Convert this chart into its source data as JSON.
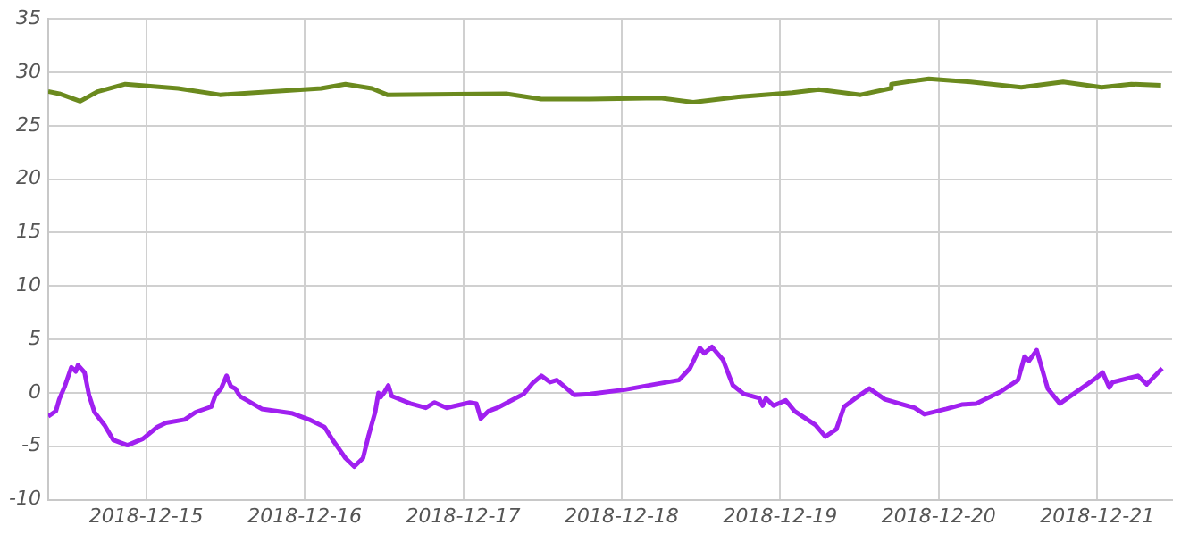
{
  "chart_data": {
    "type": "line",
    "xlim": [
      "2018-12-14T09:10",
      "2018-12-21T11:20"
    ],
    "xticks": [
      "2018-12-15",
      "2018-12-16",
      "2018-12-17",
      "2018-12-18",
      "2018-12-19",
      "2018-12-20",
      "2018-12-21"
    ],
    "ylim": [
      -10,
      35
    ],
    "yticks": [
      -10,
      -5,
      0,
      5,
      10,
      15,
      20,
      25,
      30,
      35
    ],
    "grid": true,
    "legend": false,
    "marker": "none",
    "line_style": "solid",
    "series": [
      {
        "color": "#6b8a1e",
        "x": [
          "2018-12-14T09:10",
          "2018-12-14T10:50",
          "2018-12-14T14:00",
          "2018-12-14T16:40",
          "2018-12-14T20:50",
          "2018-12-15T04:50",
          "2018-12-15T11:10",
          "2018-12-16T02:30",
          "2018-12-16T06:10",
          "2018-12-16T10:10",
          "2018-12-16T12:30",
          "2018-12-17T06:30",
          "2018-12-17T11:50",
          "2018-12-17T19:10",
          "2018-12-18T05:50",
          "2018-12-18T10:50",
          "2018-12-18T17:40",
          "2018-12-19T01:50",
          "2018-12-19T05:50",
          "2018-12-19T12:10",
          "2018-12-19T16:40",
          "2018-12-19T16:50",
          "2018-12-19T22:30",
          "2018-12-20T04:50",
          "2018-12-20T12:30",
          "2018-12-20T18:50",
          "2018-12-21T00:40",
          "2018-12-21T05:10",
          "2018-12-21T09:40"
        ],
        "values": [
          28.2,
          28.0,
          27.3,
          28.2,
          28.9,
          28.5,
          27.9,
          28.5,
          28.9,
          28.5,
          27.9,
          28.0,
          27.5,
          27.5,
          27.6,
          27.2,
          27.7,
          28.1,
          28.4,
          27.9,
          28.5,
          28.9,
          29.4,
          29.1,
          28.6,
          29.1,
          28.6,
          28.9,
          28.8
        ]
      },
      {
        "color": "#a020f0",
        "x": [
          "2018-12-14T09:10",
          "2018-12-14T10:20",
          "2018-12-14T10:50",
          "2018-12-14T11:40",
          "2018-12-14T12:40",
          "2018-12-14T13:20",
          "2018-12-14T13:40",
          "2018-12-14T14:40",
          "2018-12-14T15:20",
          "2018-12-14T16:10",
          "2018-12-14T17:40",
          "2018-12-14T19:00",
          "2018-12-14T21:10",
          "2018-12-14T23:30",
          "2018-12-15T01:40",
          "2018-12-15T03:00",
          "2018-12-15T05:50",
          "2018-12-15T07:30",
          "2018-12-15T09:50",
          "2018-12-15T10:30",
          "2018-12-15T11:20",
          "2018-12-15T12:10",
          "2018-12-15T12:50",
          "2018-12-15T13:30",
          "2018-12-15T14:10",
          "2018-12-15T17:30",
          "2018-12-15T22:00",
          "2018-12-16T00:40",
          "2018-12-16T03:00",
          "2018-12-16T04:20",
          "2018-12-16T06:10",
          "2018-12-16T07:30",
          "2018-12-16T08:50",
          "2018-12-16T09:40",
          "2018-12-16T10:40",
          "2018-12-16T11:10",
          "2018-12-16T11:30",
          "2018-12-16T12:00",
          "2018-12-16T12:40",
          "2018-12-16T13:10",
          "2018-12-16T16:00",
          "2018-12-16T18:20",
          "2018-12-16T19:40",
          "2018-12-16T21:30",
          "2018-12-17T01:00",
          "2018-12-17T02:00",
          "2018-12-17T02:40",
          "2018-12-17T03:50",
          "2018-12-17T05:10",
          "2018-12-17T07:20",
          "2018-12-17T09:10",
          "2018-12-17T10:30",
          "2018-12-17T11:50",
          "2018-12-17T13:10",
          "2018-12-17T14:10",
          "2018-12-17T16:50",
          "2018-12-17T19:10",
          "2018-12-18T00:30",
          "2018-12-18T05:00",
          "2018-12-18T08:40",
          "2018-12-18T10:20",
          "2018-12-18T11:50",
          "2018-12-18T12:30",
          "2018-12-18T13:40",
          "2018-12-18T15:20",
          "2018-12-18T16:50",
          "2018-12-18T18:30",
          "2018-12-18T20:50",
          "2018-12-18T21:20",
          "2018-12-18T21:50",
          "2018-12-18T23:00",
          "2018-12-19T00:50",
          "2018-12-19T02:10",
          "2018-12-19T05:20",
          "2018-12-19T06:50",
          "2018-12-19T08:30",
          "2018-12-19T09:40",
          "2018-12-19T11:10",
          "2018-12-19T13:30",
          "2018-12-19T15:50",
          "2018-12-19T20:20",
          "2018-12-19T21:50",
          "2018-12-20T01:10",
          "2018-12-20T03:30",
          "2018-12-20T05:40",
          "2018-12-20T09:20",
          "2018-12-20T12:00",
          "2018-12-20T13:00",
          "2018-12-20T13:40",
          "2018-12-20T14:50",
          "2018-12-20T16:30",
          "2018-12-20T18:20",
          "2018-12-20T20:10",
          "2018-12-20T23:50",
          "2018-12-21T00:50",
          "2018-12-21T01:50",
          "2018-12-21T02:20",
          "2018-12-21T06:10",
          "2018-12-21T07:30",
          "2018-12-21T09:50"
        ],
        "values": [
          -2.2,
          -1.7,
          -0.6,
          0.6,
          2.4,
          2.0,
          2.6,
          1.9,
          -0.2,
          -1.8,
          -3.0,
          -4.4,
          -4.9,
          -4.3,
          -3.2,
          -2.8,
          -2.5,
          -1.8,
          -1.3,
          -0.2,
          0.4,
          1.6,
          0.6,
          0.4,
          -0.3,
          -1.5,
          -1.9,
          -2.5,
          -3.2,
          -4.5,
          -6.1,
          -6.9,
          -6.1,
          -4.0,
          -1.8,
          0,
          -0.4,
          0,
          0.7,
          -0.3,
          -1.0,
          -1.4,
          -0.9,
          -1.4,
          -0.9,
          -1.0,
          -2.4,
          -1.7,
          -1.4,
          -0.7,
          -0.1,
          0.9,
          1.6,
          1.0,
          1.2,
          -0.2,
          -0.1,
          0.3,
          0.8,
          1.2,
          2.3,
          4.2,
          3.7,
          4.3,
          3.1,
          0.7,
          -0.1,
          -0.5,
          -1.2,
          -0.5,
          -1.2,
          -0.7,
          -1.7,
          -3.0,
          -4.1,
          -3.4,
          -1.3,
          -0.6,
          0.4,
          -0.6,
          -1.4,
          -2.0,
          -1.5,
          -1.1,
          -1.0,
          0.1,
          1.2,
          3.4,
          3.0,
          4.0,
          0.4,
          -1.0,
          -0.2,
          1.4,
          1.9,
          0.5,
          1.0,
          1.6,
          0.8,
          2.3
        ]
      }
    ]
  }
}
